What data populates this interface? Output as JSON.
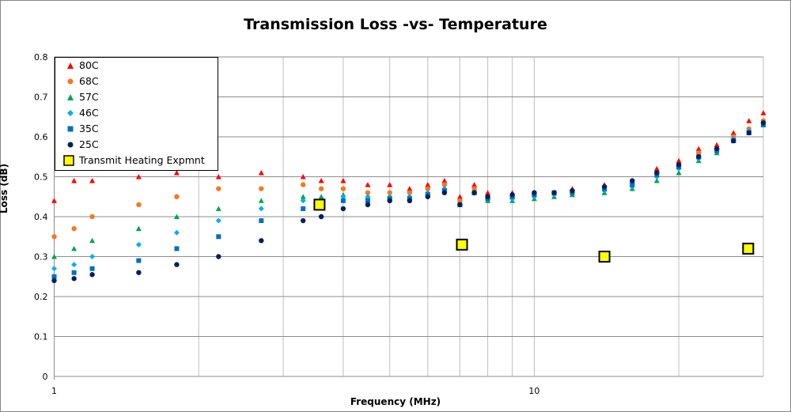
{
  "chart_data": {
    "type": "scatter",
    "title": "Transmission Loss -vs- Temperature",
    "xlabel": "Frequency (MHz)",
    "ylabel": "Loss (dB)",
    "xscale": "log",
    "xlim": [
      1,
      30
    ],
    "ylim": [
      0,
      0.8
    ],
    "x_ticks": [
      "1",
      "10"
    ],
    "y_ticks": [
      "0",
      "0.1",
      "0.2",
      "0.3",
      "0.4",
      "0.5",
      "0.6",
      "0.7",
      "0.8"
    ],
    "grid": true,
    "legend_position": "top-left",
    "x": [
      1,
      1.1,
      1.2,
      1.5,
      1.8,
      2.2,
      2.7,
      3.3,
      3.6,
      4,
      4.5,
      5,
      5.5,
      6,
      6.5,
      7,
      7.5,
      8,
      9,
      10,
      11,
      12,
      14,
      16,
      18,
      20,
      22,
      24,
      26,
      28,
      30
    ],
    "series": [
      {
        "name": "80C",
        "color": "#FF0000",
        "marker": "triangle",
        "values": [
          0.44,
          0.49,
          0.49,
          0.5,
          0.51,
          0.5,
          0.51,
          0.5,
          0.49,
          0.49,
          0.48,
          0.48,
          0.47,
          0.48,
          0.49,
          0.45,
          0.48,
          0.46,
          0.46,
          0.46,
          0.46,
          0.47,
          0.48,
          0.49,
          0.52,
          0.54,
          0.57,
          0.58,
          0.61,
          0.64,
          0.66
        ]
      },
      {
        "name": "68C",
        "color": "#F47920",
        "marker": "circle",
        "values": [
          0.35,
          0.37,
          0.4,
          0.43,
          0.45,
          0.47,
          0.47,
          0.48,
          0.47,
          0.47,
          0.46,
          0.46,
          0.46,
          0.47,
          0.48,
          0.44,
          0.47,
          0.45,
          0.45,
          0.455,
          0.46,
          0.465,
          0.475,
          0.48,
          0.51,
          0.53,
          0.56,
          0.57,
          0.6,
          0.62,
          0.64
        ]
      },
      {
        "name": "57C",
        "color": "#00A651",
        "marker": "triangle",
        "values": [
          0.3,
          0.32,
          0.34,
          0.37,
          0.4,
          0.42,
          0.44,
          0.45,
          0.45,
          0.455,
          0.45,
          0.45,
          0.45,
          0.46,
          0.47,
          0.43,
          0.46,
          0.44,
          0.44,
          0.445,
          0.45,
          0.455,
          0.46,
          0.47,
          0.49,
          0.51,
          0.54,
          0.56,
          0.59,
          0.61,
          0.63
        ]
      },
      {
        "name": "46C",
        "color": "#00AEEF",
        "marker": "diamond",
        "values": [
          0.27,
          0.28,
          0.3,
          0.33,
          0.36,
          0.39,
          0.42,
          0.44,
          0.44,
          0.45,
          0.45,
          0.45,
          0.45,
          0.46,
          0.47,
          0.43,
          0.46,
          0.445,
          0.445,
          0.45,
          0.455,
          0.46,
          0.465,
          0.475,
          0.5,
          0.52,
          0.545,
          0.565,
          0.595,
          0.615,
          0.635
        ]
      },
      {
        "name": "35C",
        "color": "#0070C0",
        "marker": "square",
        "values": [
          0.25,
          0.26,
          0.27,
          0.29,
          0.32,
          0.35,
          0.39,
          0.42,
          0.43,
          0.44,
          0.44,
          0.445,
          0.445,
          0.455,
          0.465,
          0.43,
          0.46,
          0.445,
          0.45,
          0.455,
          0.46,
          0.46,
          0.47,
          0.48,
          0.505,
          0.525,
          0.55,
          0.565,
          0.59,
          0.61,
          0.63
        ]
      },
      {
        "name": "25C",
        "color": "#002060",
        "marker": "circle",
        "values": [
          0.24,
          0.245,
          0.255,
          0.26,
          0.28,
          0.3,
          0.34,
          0.39,
          0.4,
          0.42,
          0.43,
          0.44,
          0.44,
          0.45,
          0.46,
          0.43,
          0.46,
          0.45,
          0.455,
          0.46,
          0.46,
          0.465,
          0.475,
          0.49,
          0.51,
          0.53,
          0.55,
          0.57,
          0.59,
          0.61,
          0.635
        ]
      },
      {
        "name": "Transmit Heating Expmnt",
        "color": "#FFFF00",
        "marker": "square-large",
        "x": [
          3.57,
          7.07,
          14.0,
          27.9
        ],
        "values": [
          0.43,
          0.33,
          0.3,
          0.32
        ]
      }
    ]
  }
}
